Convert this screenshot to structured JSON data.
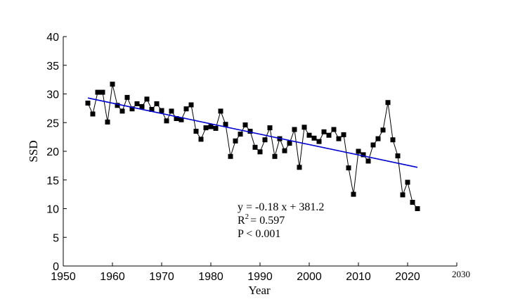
{
  "chart_data": {
    "type": "scatter",
    "title": "",
    "xlabel": "Year",
    "ylabel": "SSD",
    "xlim": [
      1950,
      2030
    ],
    "ylim": [
      0,
      40
    ],
    "x_ticks": [
      1950,
      1960,
      1970,
      1980,
      1990,
      2000,
      2010,
      2020,
      2030
    ],
    "y_ticks": [
      0,
      5,
      10,
      15,
      20,
      25,
      30,
      35,
      40
    ],
    "grid": false,
    "series": [
      {
        "style": "line-with-square-markers",
        "color": "#000000",
        "x": [
          1955,
          1956,
          1957,
          1958,
          1959,
          1960,
          1961,
          1962,
          1963,
          1964,
          1965,
          1966,
          1967,
          1968,
          1969,
          1970,
          1971,
          1972,
          1973,
          1974,
          1975,
          1976,
          1977,
          1978,
          1979,
          1980,
          1981,
          1982,
          1983,
          1984,
          1985,
          1986,
          1987,
          1988,
          1989,
          1990,
          1991,
          1992,
          1993,
          1994,
          1995,
          1996,
          1997,
          1998,
          1999,
          2000,
          2001,
          2002,
          2003,
          2004,
          2005,
          2006,
          2007,
          2008,
          2009,
          2010,
          2011,
          2012,
          2013,
          2014,
          2015,
          2016,
          2017,
          2018,
          2019,
          2020,
          2021,
          2022
        ],
        "y": [
          28.4,
          26.5,
          30.3,
          30.3,
          25.1,
          31.7,
          28.0,
          27.0,
          29.4,
          27.4,
          28.3,
          27.8,
          29.1,
          27.3,
          28.3,
          27.1,
          25.3,
          27.0,
          25.7,
          25.5,
          27.4,
          28.1,
          23.5,
          22.1,
          24.1,
          24.3,
          24.0,
          27.0,
          24.7,
          19.1,
          21.8,
          23.0,
          24.6,
          23.5,
          20.7,
          19.9,
          22.0,
          24.1,
          19.1,
          22.2,
          20.1,
          21.4,
          23.8,
          17.2,
          24.2,
          22.8,
          22.3,
          21.7,
          23.4,
          22.8,
          23.8,
          22.2,
          22.9,
          17.1,
          12.5,
          20.0,
          19.4,
          18.3,
          21.1,
          22.2,
          23.7,
          28.5,
          22.0,
          19.2,
          12.4,
          14.6,
          11.1,
          10.0
        ]
      }
    ],
    "trend_line": {
      "color": "#0000cc",
      "x": [
        1955,
        2022
      ],
      "y": [
        29.3,
        17.2
      ]
    },
    "annotations": {
      "equation": "y = -0.18 x + 381.2",
      "r2_prefix": "R",
      "r2_sup": "2",
      "r2_value": "= 0.597",
      "p_value": "P < 0.001"
    }
  }
}
